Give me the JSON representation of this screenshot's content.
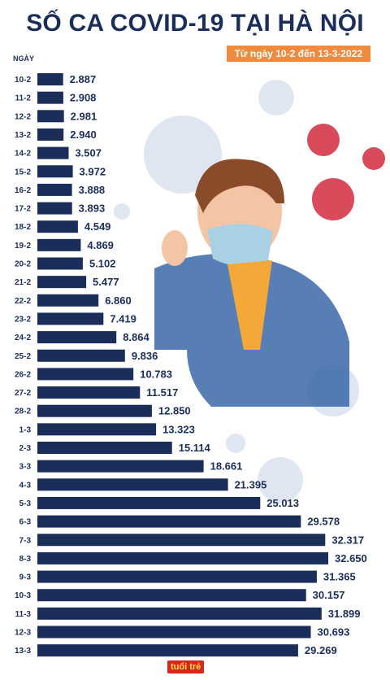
{
  "header": {
    "title": "SỐ CA COVID-19 TẠI HÀ NỘI",
    "date_range": "Từ ngày 10-2 đến 13-3-2022",
    "axis_label": "NGÀY"
  },
  "logo": {
    "text": "tuổi trẻ"
  },
  "colors": {
    "bar": "#1b2e5a",
    "badge": "#ef8a3e",
    "virus_red": "#d94a5a",
    "virus_light": "#dfe6f2"
  },
  "chart_data": {
    "type": "bar",
    "orientation": "horizontal",
    "title": "SỐ CA COVID-19 TẠI HÀ NỘI",
    "subtitle": "Từ ngày 10-2 đến 13-3-2022",
    "ylabel": "NGÀY",
    "categories": [
      "10-2",
      "11-2",
      "12-2",
      "13-2",
      "14-2",
      "15-2",
      "16-2",
      "17-2",
      "18-2",
      "19-2",
      "20-2",
      "21-2",
      "22-2",
      "23-2",
      "24-2",
      "25-2",
      "26-2",
      "27-2",
      "28-2",
      "1-3",
      "2-3",
      "3-3",
      "4-3",
      "5-3",
      "6-3",
      "7-3",
      "8-3",
      "9-3",
      "10-3",
      "11-3",
      "12-3",
      "13-3"
    ],
    "values": [
      2887,
      2908,
      2981,
      2940,
      3507,
      3972,
      3888,
      3893,
      4549,
      4869,
      5102,
      5477,
      6860,
      7419,
      8864,
      9836,
      10783,
      11517,
      12850,
      13323,
      15114,
      18661,
      21395,
      25013,
      29578,
      32317,
      32650,
      31365,
      30157,
      31899,
      30693,
      29269
    ],
    "value_labels": [
      "2.887",
      "2.908",
      "2.981",
      "2.940",
      "3.507",
      "3.972",
      "3.888",
      "3.893",
      "4.549",
      "4.869",
      "5.102",
      "5.477",
      "6.860",
      "7.419",
      "8.864",
      "9.836",
      "10.783",
      "11.517",
      "12.850",
      "13.323",
      "15.114",
      "18.661",
      "21.395",
      "25.013",
      "29.578",
      "32.317",
      "32.650",
      "31.365",
      "30.157",
      "31.899",
      "30.693",
      "29.269"
    ]
  }
}
